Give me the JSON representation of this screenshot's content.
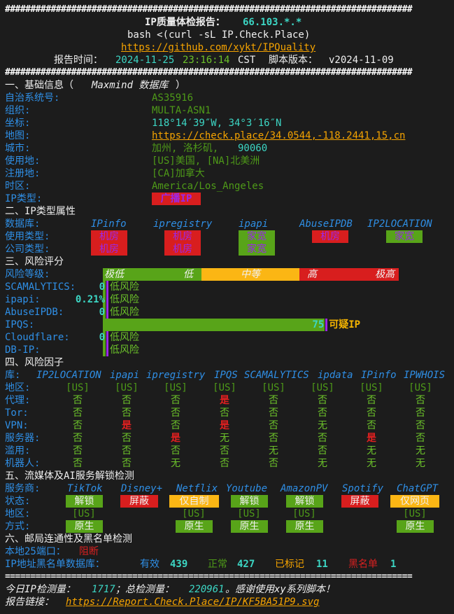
{
  "hash_line": "################################################################################",
  "eq_line": "================================================================================",
  "header": {
    "title_prefix": "IP质量体检报告：",
    "ip": "66.103.*.*",
    "command": "bash <(curl -sL IP.Check.Place)",
    "repo_link": "https://github.com/xykt/IPQuality",
    "time_label": "报告时间：",
    "date": "2024-11-25",
    "time": "23:16:14",
    "tz": "CST",
    "version_label": "脚本版本：",
    "version": "v2024-11-09"
  },
  "basic": {
    "title": "一、基础信息（",
    "title_db": "Maxmind 数据库",
    "title_end": "）",
    "asn_label": "自治系统号:",
    "asn": "AS35916",
    "org_label": "组织:",
    "org": "MULTA-ASN1",
    "coord_label": "坐标:",
    "coord": "118°14′39″W, 34°3′16″N",
    "map_label": "地图:",
    "map": "https://check.place/34.0544,-118.2441,15,cn",
    "city_label": "城市:",
    "city": "加州, 洛杉矶, ",
    "zip": "90060",
    "usage_label": "使用地:",
    "usage": "[US]美国, [NA]北美洲",
    "reg_label": "注册地:",
    "reg": "[CA]加拿大",
    "tz_label": "时区:",
    "tz": "America/Los_Angeles",
    "iptype_label": "IP类型:",
    "iptype": "广播IP"
  },
  "types": {
    "title": "二、IP类型属性",
    "db_label": "数据库:",
    "usage_label": "使用类型:",
    "company_label": "公司类型:",
    "columns": [
      {
        "name": "IPinfo",
        "usage": "机房",
        "company": "机房",
        "usage_color": "#d81e1e",
        "company_color": "#d81e1e"
      },
      {
        "name": "ipregistry",
        "usage": "机房",
        "company": "机房",
        "usage_color": "#d81e1e",
        "company_color": "#d81e1e"
      },
      {
        "name": "ipapi",
        "usage": "家宽",
        "company": "家宽",
        "usage_color": "#58a419",
        "company_color": "#58a419"
      },
      {
        "name": "AbuseIPDB",
        "usage": "机房",
        "company": null,
        "usage_color": "#d81e1e"
      },
      {
        "name": "IP2LOCATION",
        "usage": "家宽",
        "company": null,
        "usage_color": "#58a419"
      }
    ]
  },
  "risk": {
    "title": "三、风险评分",
    "level_label": "风险等级:",
    "levels": [
      "极低",
      "低",
      "中等",
      "高",
      "极高"
    ],
    "scores": [
      {
        "label": "SCAMALYTICS:",
        "score": "0",
        "verdict": "低风险",
        "percent": 0
      },
      {
        "label": "ipapi:",
        "score": "0.21%",
        "verdict": "低风险",
        "percent": 0.21
      },
      {
        "label": "AbuseIPDB:",
        "score": "0",
        "verdict": "低风险",
        "percent": 0
      },
      {
        "label": "IPQS:",
        "score": "75",
        "verdict": "可疑IP",
        "percent": 75
      },
      {
        "label": "Cloudflare:",
        "score": "0",
        "verdict": "低风险",
        "percent": 0
      },
      {
        "label": "DB-IP:",
        "score": "",
        "verdict": "低风险",
        "percent": 0
      }
    ]
  },
  "factors": {
    "title": "四、风险因子",
    "db_label": "库:",
    "dbs": [
      "IP2LOCATION",
      "ipapi",
      "ipregistry",
      "IPQS",
      "SCAMALYTICS",
      "ipdata",
      "IPinfo",
      "IPWHOIS"
    ],
    "rows": [
      {
        "label": "地区:",
        "values": [
          "[US]",
          "[US]",
          "[US]",
          "[US]",
          "[US]",
          "[US]",
          "[US]",
          "[US]"
        ]
      },
      {
        "label": "代理:",
        "values": [
          "否",
          "否",
          "否",
          "是",
          "否",
          "否",
          "否",
          "否"
        ]
      },
      {
        "label": "Tor:",
        "values": [
          "否",
          "否",
          "否",
          "否",
          "否",
          "否",
          "否",
          "否"
        ]
      },
      {
        "label": "VPN:",
        "values": [
          "否",
          "是",
          "否",
          "是",
          "否",
          "无",
          "否",
          "否"
        ]
      },
      {
        "label": "服务器:",
        "values": [
          "否",
          "否",
          "是",
          "无",
          "否",
          "否",
          "是",
          "否"
        ]
      },
      {
        "label": "滥用:",
        "values": [
          "否",
          "否",
          "否",
          "否",
          "无",
          "否",
          "无",
          "无"
        ]
      },
      {
        "label": "机器人:",
        "values": [
          "否",
          "否",
          "无",
          "否",
          "否",
          "无",
          "无",
          "无"
        ]
      }
    ]
  },
  "media": {
    "title": "五、流媒体及AI服务解锁检测",
    "provider_label": "服务商:",
    "status_label": "状态:",
    "region_label": "地区:",
    "method_label": "方式:",
    "services": [
      {
        "name": "TikTok",
        "status": "解锁",
        "status_color": "#58a419",
        "region": "[US]",
        "method": "原生"
      },
      {
        "name": "Disney+",
        "status": "屏蔽",
        "status_color": "#d81e1e",
        "region": "",
        "method": ""
      },
      {
        "name": "Netflix",
        "status": "仅自制",
        "status_color": "#fbb614",
        "region": "[US]",
        "method": "原生"
      },
      {
        "name": "Youtube",
        "status": "解锁",
        "status_color": "#58a419",
        "region": "[US]",
        "method": "原生"
      },
      {
        "name": "AmazonPV",
        "status": "解锁",
        "status_color": "#58a419",
        "region": "[US]",
        "method": "原生"
      },
      {
        "name": "Spotify",
        "status": "屏蔽",
        "status_color": "#d81e1e",
        "region": "",
        "method": ""
      },
      {
        "name": "ChatGPT",
        "status": "仅网页",
        "status_color": "#fbb614",
        "region": "[US]",
        "method": "原生"
      }
    ]
  },
  "mail": {
    "title": "六、邮局连通性及黑名单检测",
    "port_label": "本地25端口：",
    "port_status": "阻断",
    "bl_label": "IP地址黑名单数据库：",
    "valid_label": "有效",
    "valid": "439",
    "clean_label": "正常",
    "clean": "427",
    "marked_label": "已标记",
    "marked": "11",
    "black_label": "黑名单",
    "black": "1"
  },
  "footer": {
    "today_label": "今日IP检测量：",
    "today": "1717",
    "sep": "；总检测量：",
    "total": "220961",
    "thanks": "。感谢使用xy系列脚本！",
    "report_label": "报告链接：",
    "report_link": "https://Report.Check.Place/IP/KF5BA51P9.svg"
  }
}
